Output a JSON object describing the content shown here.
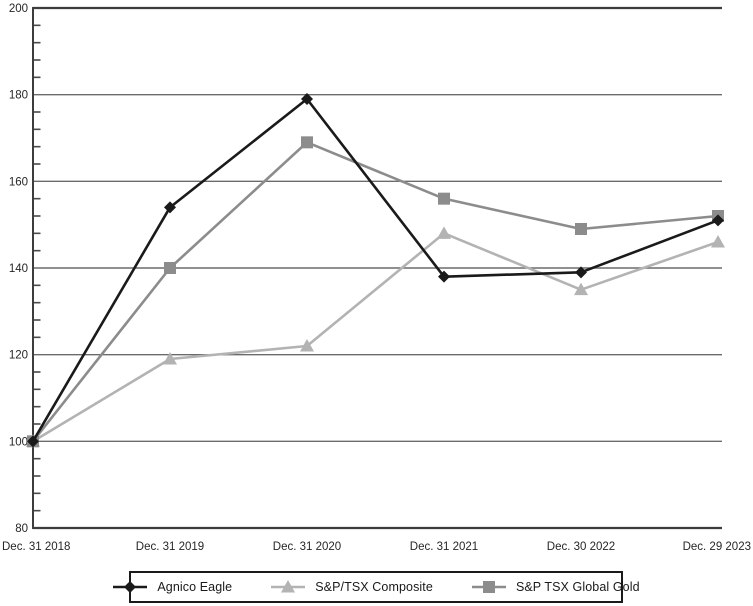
{
  "chart_data": {
    "type": "line",
    "title": "",
    "xlabel": "",
    "ylabel": "",
    "x_categories": [
      "Dec. 31 2018",
      "Dec. 31 2019",
      "Dec. 31 2020",
      "Dec. 31 2021",
      "Dec. 30 2022",
      "Dec. 29 2023"
    ],
    "ylim": [
      80,
      200
    ],
    "y_major_ticks": [
      80,
      100,
      120,
      140,
      160,
      180,
      200
    ],
    "y_minor_tick_step": 4,
    "grid": "horizontal-major",
    "legend_position": "bottom-center-boxed",
    "series": [
      {
        "name": "Agnico Eagle",
        "marker": "diamond",
        "color": "#1a1a1a",
        "values": [
          100,
          154,
          179,
          138,
          139,
          151
        ]
      },
      {
        "name": "S&P/TSX Composite",
        "marker": "triangle",
        "color": "#b3b3b3",
        "values": [
          100,
          119,
          122,
          148,
          135,
          146
        ]
      },
      {
        "name": "S&P TSX Global Gold",
        "marker": "square",
        "color": "#8c8c8c",
        "values": [
          100,
          140,
          169,
          156,
          149,
          152
        ]
      }
    ],
    "z_order": [
      1,
      2,
      0
    ]
  },
  "colors": {
    "background": "#ffffff",
    "gridline": "#6b6b6b",
    "axis_line": "#3d3d3d",
    "tick": "#4a4a4a",
    "label_text": "#262626",
    "legend_border": "#1a1a1a"
  }
}
